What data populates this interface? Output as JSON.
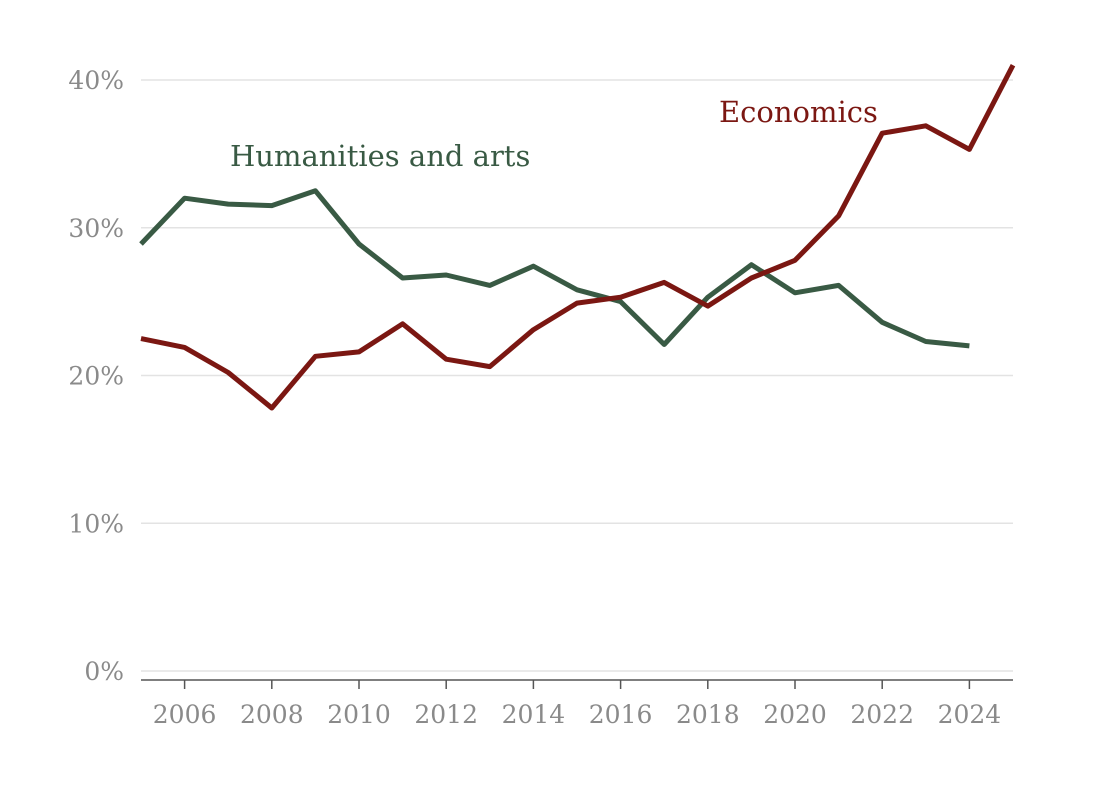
{
  "chart_data": {
    "type": "line",
    "x": [
      2005,
      2006,
      2007,
      2008,
      2009,
      2010,
      2011,
      2012,
      2013,
      2014,
      2015,
      2016,
      2017,
      2018,
      2019,
      2020,
      2021,
      2022,
      2023,
      2024,
      2025
    ],
    "xlim": [
      2005,
      2025
    ],
    "ylim": [
      0,
      40
    ],
    "x_ticks": [
      2006,
      2008,
      2010,
      2012,
      2014,
      2016,
      2018,
      2020,
      2022,
      2024
    ],
    "x_tick_labels": [
      "2006",
      "2008",
      "2010",
      "2012",
      "2014",
      "2016",
      "2018",
      "2020",
      "2022",
      "2024"
    ],
    "y_ticks": [
      0,
      10,
      20,
      30,
      40
    ],
    "y_tick_labels": [
      "0%",
      "10%",
      "20%",
      "30%",
      "40%"
    ],
    "grid": true,
    "legend": "direct labels",
    "series": [
      {
        "name": "Economics",
        "color": "#7b1712",
        "values": [
          22.5,
          21.9,
          20.2,
          17.8,
          21.3,
          21.6,
          23.5,
          21.1,
          20.6,
          23.1,
          24.9,
          25.3,
          26.3,
          24.7,
          26.6,
          27.8,
          30.8,
          36.4,
          36.9,
          35.3,
          41.0
        ]
      },
      {
        "name": "Humanities and arts",
        "color": "#395a44",
        "values": [
          28.9,
          32.0,
          31.6,
          31.5,
          32.5,
          28.9,
          26.6,
          26.8,
          26.1,
          27.4,
          25.8,
          25.0,
          22.1,
          25.3,
          27.5,
          25.6,
          26.1,
          23.6,
          22.3,
          22.0,
          null
        ]
      }
    ]
  }
}
